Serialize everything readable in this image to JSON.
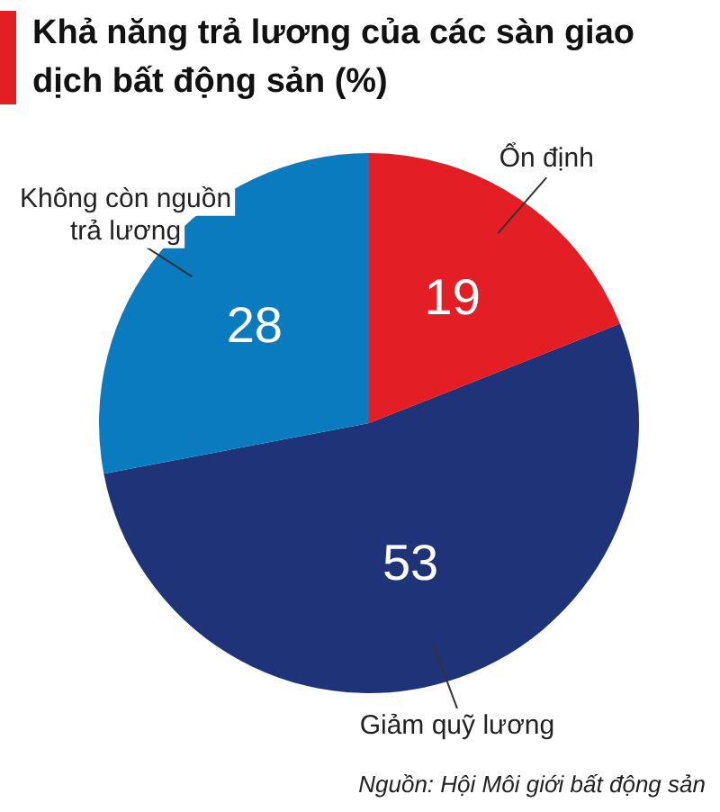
{
  "chart_data": {
    "type": "pie",
    "title": "Khả năng trả lương của các sàn giao dịch bất động sản (%)",
    "categories": [
      "Ổn định",
      "Giảm quỹ lương",
      "Không còn nguồn trả lương"
    ],
    "values": [
      19,
      53,
      28
    ],
    "colors": [
      "#e31e25",
      "#1f3478",
      "#0b7bc0"
    ],
    "data_labels": true,
    "legend": false,
    "annotations": [
      "Nguồn: Hội Môi giới bất động sản"
    ]
  }
}
